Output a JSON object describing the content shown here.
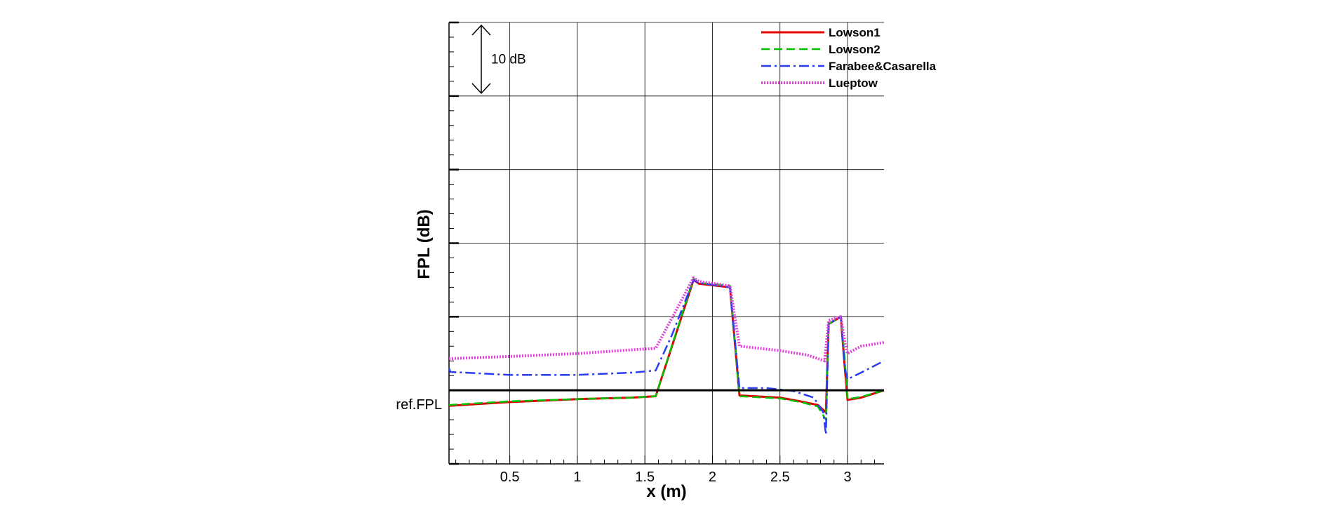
{
  "chart_data": {
    "type": "line",
    "xlabel": "x (m)",
    "ylabel": "FPL (dB)",
    "xlim": [
      0.05,
      3.27
    ],
    "ylim": [
      -10,
      50
    ],
    "xticks": [
      0.5,
      1,
      1.5,
      2,
      2.5,
      3
    ],
    "xtick_labels": [
      "0.5",
      "1",
      "1.5",
      "2",
      "2.5",
      "3"
    ],
    "grid": true,
    "legend_position": "top-right",
    "reference_label": "ref.FPL",
    "reference_value": 0,
    "annotation": {
      "text": "10 dB",
      "from": 40,
      "to": 50
    },
    "series": [
      {
        "name": "Lowson1",
        "color": "#e00000",
        "dash": "solid",
        "x": [
          0.05,
          0.5,
          1.0,
          1.4,
          1.58,
          1.86,
          1.9,
          2.13,
          2.2,
          2.5,
          2.65,
          2.78,
          2.84,
          2.86,
          2.95,
          2.98,
          3.0,
          3.1,
          3.27
        ],
        "y": [
          -2.1,
          -1.6,
          -1.2,
          -1.0,
          -0.8,
          15.0,
          14.5,
          14.0,
          -0.7,
          -1.0,
          -1.5,
          -2.0,
          -3.0,
          9.0,
          10.0,
          3.0,
          -1.3,
          -1.0,
          0.0
        ]
      },
      {
        "name": "Lowson2",
        "color": "#00c000",
        "dash": "dashed",
        "x": [
          0.05,
          0.5,
          1.0,
          1.4,
          1.58,
          1.86,
          1.9,
          2.13,
          2.2,
          2.5,
          2.65,
          2.78,
          2.84,
          2.86,
          2.95,
          2.98,
          3.0,
          3.1,
          3.27
        ],
        "y": [
          -2.0,
          -1.5,
          -1.2,
          -1.0,
          -0.8,
          15.2,
          14.6,
          14.2,
          -0.8,
          -1.1,
          -1.6,
          -2.2,
          -4.0,
          9.0,
          10.0,
          4.0,
          -1.2,
          -0.9,
          0.0
        ]
      },
      {
        "name": "Farabee&Casarella",
        "color": "#2a3cf0",
        "dash": "dashdot",
        "x": [
          0.05,
          0.06,
          0.5,
          1.0,
          1.4,
          1.58,
          1.7,
          1.86,
          1.9,
          2.13,
          2.2,
          2.4,
          2.6,
          2.75,
          2.82,
          2.84,
          2.86,
          2.95,
          2.98,
          3.0,
          3.1,
          3.27
        ],
        "y": [
          3.0,
          2.5,
          2.1,
          2.1,
          2.4,
          2.7,
          7.5,
          15.0,
          14.6,
          14.0,
          0.3,
          0.3,
          -0.1,
          -1.0,
          -3.0,
          -6.0,
          9.0,
          10.0,
          3.0,
          1.5,
          2.4,
          4.0
        ]
      },
      {
        "name": "Lueptow",
        "color": "#e040d8",
        "dash": "dotted",
        "x": [
          0.05,
          0.5,
          1.0,
          1.4,
          1.58,
          1.86,
          1.9,
          2.13,
          2.2,
          2.5,
          2.7,
          2.83,
          2.86,
          2.95,
          2.98,
          3.0,
          3.1,
          3.27
        ],
        "y": [
          4.3,
          4.6,
          5.0,
          5.5,
          5.7,
          15.3,
          14.8,
          14.2,
          6.0,
          5.4,
          4.8,
          4.0,
          9.5,
          10.0,
          6.5,
          5.0,
          6.0,
          6.5
        ]
      }
    ]
  }
}
